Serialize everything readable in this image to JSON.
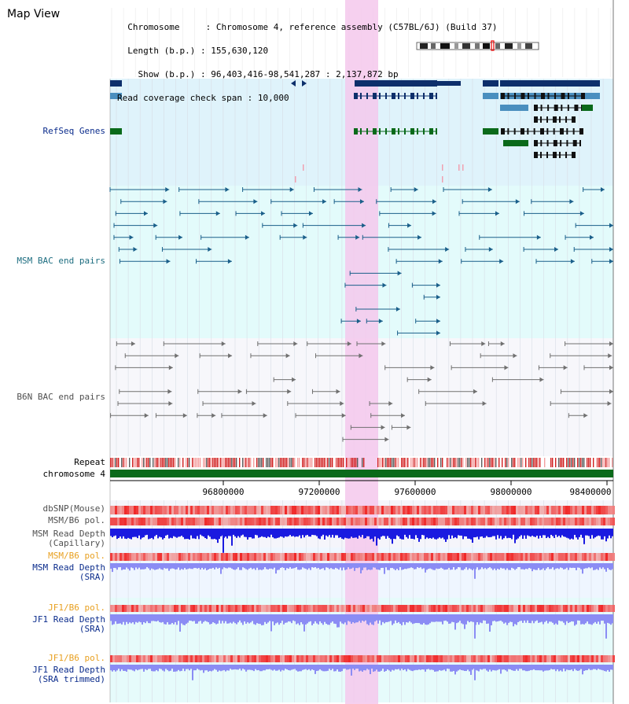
{
  "title": "Map View",
  "header": {
    "chromosome_label": "Chromosome     ",
    "chromosome_value": "Chromosome 4, reference assembly (C57BL/6J) (Build 37)",
    "length_label": "Length (b.p.) ",
    "length_value": "155,630,120",
    "show_label": "Show (b.p.) ",
    "show_value": "96,403,416-98,541,287 : 2,137,872 bp",
    "span_label": "Read coverage check span",
    "span_value": "10,000"
  },
  "tracks": {
    "refseq": "RefSeq Genes",
    "msm_bac": "MSM BAC end pairs",
    "b6n_bac": "B6N BAC end pairs",
    "repeat": "Repeat",
    "chromosome": "chromosome 4",
    "dbsnp": "dbSNP(Mouse)",
    "msm_b6_pol_1": "MSM/B6 pol.",
    "msm_depth_cap_1": "MSM Read Depth",
    "msm_depth_cap_2": "(Capillary)",
    "msm_b6_pol_2": "MSM/B6 pol.",
    "msm_depth_sra_1": "MSM Read Depth",
    "msm_depth_sra_2": "(SRA)",
    "jf1_b6_pol_1": "JF1/B6 pol.",
    "jf1_depth_sra_1": "JF1 Read Depth",
    "jf1_depth_sra_2": "(SRA)",
    "jf1_b6_pol_2": "JF1/B6 pol.",
    "jf1_depth_trim_1": "JF1 Read Depth",
    "jf1_depth_trim_2": "(SRA trimmed)"
  },
  "axis_ticks": [
    "96800000",
    "97200000",
    "97600000",
    "98000000",
    "98400000"
  ],
  "colors": {
    "refseq_bg": "#dff3fb",
    "msm_bg": "#e3fbfb",
    "b6n_bg": "#f7f7fb",
    "highlight": "#f5c8ec",
    "gene_dark": "#0d2f6b",
    "gene_mid": "#4a8fbf",
    "gene_green": "#0a6a1a",
    "msm_blue": "#1a5f8a",
    "b6n_gray": "#707070",
    "depth_blue": "#1a1ae0",
    "depth_light": "#8b8cf4",
    "pol_red": "#f04040",
    "label_blue": "#0b2c8c",
    "label_teal": "#1d6d80",
    "label_orange": "#e8a020"
  }
}
